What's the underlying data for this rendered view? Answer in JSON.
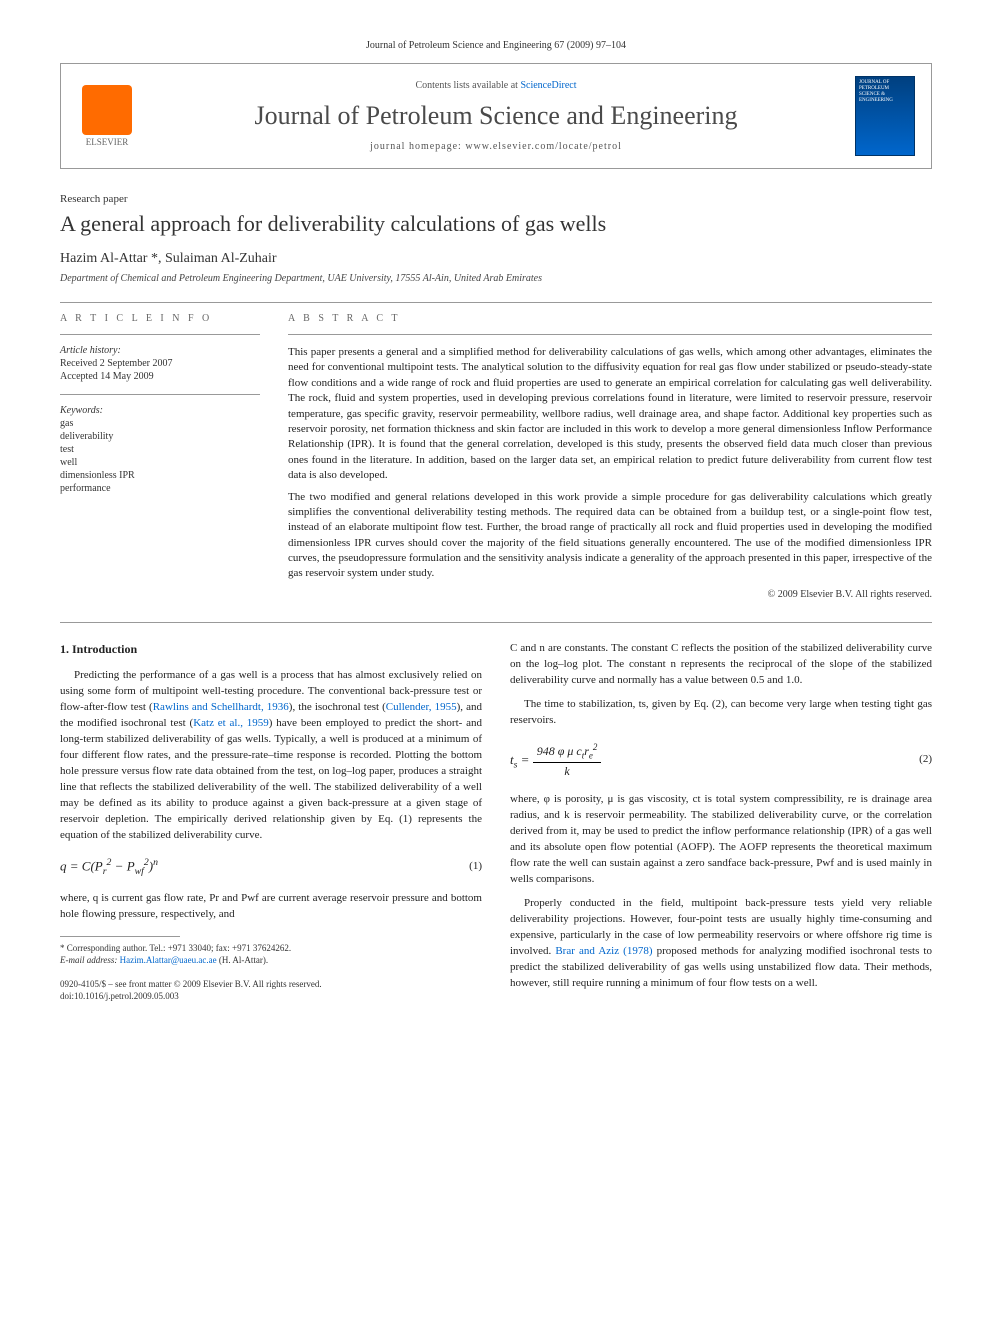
{
  "journal_ref": "Journal of Petroleum Science and Engineering 67 (2009) 97–104",
  "header": {
    "contents_prefix": "Contents lists available at ",
    "contents_link": "ScienceDirect",
    "journal_title": "Journal of Petroleum Science and Engineering",
    "homepage_prefix": "journal homepage: ",
    "homepage_url": "www.elsevier.com/locate/petrol",
    "elsevier_label": "ELSEVIER",
    "cover_label": "JOURNAL OF PETROLEUM SCIENCE & ENGINEERING"
  },
  "article": {
    "type": "Research paper",
    "title": "A general approach for deliverability calculations of gas wells",
    "authors": "Hazim Al-Attar *, Sulaiman Al-Zuhair",
    "affiliation": "Department of Chemical and Petroleum Engineering Department, UAE University, 17555 Al-Ain, United Arab Emirates"
  },
  "info": {
    "heading": "A R T I C L E   I N F O",
    "history_label": "Article history:",
    "received": "Received 2 September 2007",
    "accepted": "Accepted 14 May 2009",
    "keywords_label": "Keywords:",
    "keywords": [
      "gas",
      "deliverability",
      "test",
      "well",
      "dimensionless IPR",
      "performance"
    ]
  },
  "abstract": {
    "heading": "A B S T R A C T",
    "p1": "This paper presents a general and a simplified method for deliverability calculations of gas wells, which among other advantages, eliminates the need for conventional multipoint tests. The analytical solution to the diffusivity equation for real gas flow under stabilized or pseudo-steady-state flow conditions and a wide range of rock and fluid properties are used to generate an empirical correlation for calculating gas well deliverability. The rock, fluid and system properties, used in developing previous correlations found in literature, were limited to reservoir pressure, reservoir temperature, gas specific gravity, reservoir permeability, wellbore radius, well drainage area, and shape factor. Additional key properties such as reservoir porosity, net formation thickness and skin factor are included in this work to develop a more general dimensionless Inflow Performance Relationship (IPR). It is found that the general correlation, developed is this study, presents the observed field data much closer than previous ones found in the literature. In addition, based on the larger data set, an empirical relation to predict future deliverability from current flow test data is also developed.",
    "p2": "The two modified and general relations developed in this work provide a simple procedure for gas deliverability calculations which greatly simplifies the conventional deliverability testing methods. The required data can be obtained from a buildup test, or a single-point flow test, instead of an elaborate multipoint flow test. Further, the broad range of practically all rock and fluid properties used in developing the modified dimensionless IPR curves should cover the majority of the field situations generally encountered. The use of the modified dimensionless IPR curves, the pseudopressure formulation and the sensitivity analysis indicate a generality of the approach presented in this paper, irrespective of the gas reservoir system under study.",
    "copyright": "© 2009 Elsevier B.V. All rights reserved."
  },
  "body": {
    "intro_heading": "1. Introduction",
    "left": {
      "p1a": "Predicting the performance of a gas well is a process that has almost exclusively relied on using some form of multipoint well-testing procedure. The conventional back-pressure test or flow-after-flow test (",
      "ref1": "Rawlins and Schellhardt, 1936",
      "p1b": "), the isochronal test (",
      "ref2": "Cullender, 1955",
      "p1c": "), and the modified isochronal test (",
      "ref3": "Katz et al., 1959",
      "p1d": ") have been employed to predict the short- and long-term stabilized deliverability of gas wells. Typically, a well is produced at a minimum of four different flow rates, and the pressure-rate–time response is recorded. Plotting the bottom hole pressure versus flow rate data obtained from the test, on log–log paper, produces a straight line that reflects the stabilized deliverability of the well. The stabilized deliverability of a well may be defined as its ability to produce against a given back-pressure at a given stage of reservoir depletion. The empirically derived relationship given by Eq. (1) represents the equation of the stabilized deliverability curve.",
      "eq1_num": "(1)",
      "p2": "where, q is current gas flow rate, Pr and Pwf are current average reservoir pressure and bottom hole flowing pressure, respectively, and"
    },
    "right": {
      "p1": "C and n are constants. The constant C reflects the position of the stabilized deliverability curve on the log–log plot. The constant n represents the reciprocal of the slope of the stabilized deliverability curve and normally has a value between 0.5 and 1.0.",
      "p2": "The time to stabilization, ts, given by Eq. (2), can become very large when testing tight gas reservoirs.",
      "eq2_num": "(2)",
      "p3": "where, φ is porosity, μ is gas viscosity, ct is total system compressibility, re is drainage area radius, and k is reservoir permeability. The stabilized deliverability curve, or the correlation derived from it, may be used to predict the inflow performance relationship (IPR) of a gas well and its absolute open flow potential (AOFP). The AOFP represents the theoretical maximum flow rate the well can sustain against a zero sandface back-pressure, Pwf and is used mainly in wells comparisons.",
      "p4a": "Properly conducted in the field, multipoint back-pressure tests yield very reliable deliverability projections. However, four-point tests are usually highly time-consuming and expensive, particularly in the case of low permeability reservoirs or where offshore rig time is involved. ",
      "ref4": "Brar and Aziz (1978)",
      "p4b": " proposed methods for analyzing modified isochronal tests to predict the stabilized deliverability of gas wells using unstabilized flow data. Their methods, however, still require running a minimum of four flow tests on a well."
    }
  },
  "footnote": {
    "corr": "* Corresponding author. Tel.: +971 33040; fax: +971 37624262.",
    "email_label": "E-mail address: ",
    "email": "Hazim.Alattar@uaeu.ac.ae",
    "email_suffix": " (H. Al-Attar)."
  },
  "footer": {
    "issn": "0920-4105/$ – see front matter © 2009 Elsevier B.V. All rights reserved.",
    "doi": "doi:10.1016/j.petrol.2009.05.003"
  },
  "colors": {
    "link": "#0066cc",
    "text": "#222222",
    "rule": "#999999",
    "elsevier_orange": "#ff6b00",
    "cover_blue": "#004080"
  }
}
